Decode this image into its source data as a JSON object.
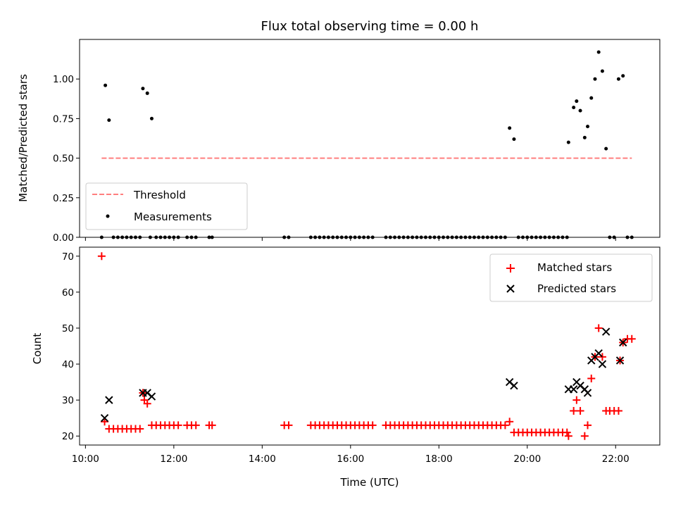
{
  "chart_data": [
    {
      "type": "scatter",
      "title": "Flux total observing time = 0.00 h",
      "xlabel": "",
      "ylabel": "Matched/Predicted stars",
      "xlim": [
        "09:52",
        "23:00"
      ],
      "ylim": [
        0,
        1.25
      ],
      "yticks": [
        0.0,
        0.25,
        0.5,
        0.75,
        1.0
      ],
      "ytick_labels": [
        "0.00",
        "0.25",
        "0.50",
        "0.75",
        "1.00"
      ],
      "legend": {
        "placement": "lower-left",
        "entries": [
          "Threshold",
          "Measurements"
        ]
      },
      "threshold": {
        "name": "Threshold",
        "value": 0.5,
        "x_range": [
          "10:22",
          "22:22"
        ],
        "color": "#ff7f7f",
        "style": "dashed"
      },
      "series": [
        {
          "name": "Measurements",
          "color": "#000000",
          "points": [
            [
              "10:22",
              0
            ],
            [
              "10:27",
              0.96
            ],
            [
              "10:32",
              0.74
            ],
            [
              "10:38",
              0
            ],
            [
              "10:44",
              0
            ],
            [
              "10:50",
              0
            ],
            [
              "10:56",
              0
            ],
            [
              "11:02",
              0
            ],
            [
              "11:08",
              0
            ],
            [
              "11:14",
              0
            ],
            [
              "11:18",
              0.94
            ],
            [
              "11:24",
              0.91
            ],
            [
              "11:28",
              0
            ],
            [
              "11:30",
              0.75
            ],
            [
              "11:36",
              0
            ],
            [
              "11:42",
              0
            ],
            [
              "11:48",
              0
            ],
            [
              "11:54",
              0
            ],
            [
              "12:00",
              0
            ],
            [
              "12:06",
              0
            ],
            [
              "12:18",
              0
            ],
            [
              "12:24",
              0
            ],
            [
              "12:30",
              0
            ],
            [
              "12:48",
              0
            ],
            [
              "12:52",
              0
            ],
            [
              "14:30",
              0
            ],
            [
              "14:36",
              0
            ],
            [
              "15:06",
              0
            ],
            [
              "15:12",
              0
            ],
            [
              "15:18",
              0
            ],
            [
              "15:24",
              0
            ],
            [
              "15:30",
              0
            ],
            [
              "15:36",
              0
            ],
            [
              "15:42",
              0
            ],
            [
              "15:48",
              0
            ],
            [
              "15:54",
              0
            ],
            [
              "16:00",
              0
            ],
            [
              "16:06",
              0
            ],
            [
              "16:12",
              0
            ],
            [
              "16:18",
              0
            ],
            [
              "16:24",
              0
            ],
            [
              "16:30",
              0
            ],
            [
              "16:48",
              0
            ],
            [
              "16:54",
              0
            ],
            [
              "17:00",
              0
            ],
            [
              "17:06",
              0
            ],
            [
              "17:12",
              0
            ],
            [
              "17:18",
              0
            ],
            [
              "17:24",
              0
            ],
            [
              "17:30",
              0
            ],
            [
              "17:36",
              0
            ],
            [
              "17:42",
              0
            ],
            [
              "17:48",
              0
            ],
            [
              "17:54",
              0
            ],
            [
              "18:00",
              0
            ],
            [
              "18:06",
              0
            ],
            [
              "18:12",
              0
            ],
            [
              "18:18",
              0
            ],
            [
              "18:24",
              0
            ],
            [
              "18:30",
              0
            ],
            [
              "18:36",
              0
            ],
            [
              "18:42",
              0
            ],
            [
              "18:48",
              0
            ],
            [
              "18:54",
              0
            ],
            [
              "19:00",
              0
            ],
            [
              "19:06",
              0
            ],
            [
              "19:12",
              0
            ],
            [
              "19:18",
              0
            ],
            [
              "19:24",
              0
            ],
            [
              "19:30",
              0
            ],
            [
              "19:36",
              0.69
            ],
            [
              "19:42",
              0.62
            ],
            [
              "19:48",
              0
            ],
            [
              "19:54",
              0
            ],
            [
              "20:00",
              0
            ],
            [
              "20:06",
              0
            ],
            [
              "20:12",
              0
            ],
            [
              "20:18",
              0
            ],
            [
              "20:24",
              0
            ],
            [
              "20:30",
              0
            ],
            [
              "20:36",
              0
            ],
            [
              "20:42",
              0
            ],
            [
              "20:48",
              0
            ],
            [
              "20:54",
              0
            ],
            [
              "20:56",
              0.6
            ],
            [
              "21:03",
              0.82
            ],
            [
              "21:07",
              0.86
            ],
            [
              "21:12",
              0.8
            ],
            [
              "21:18",
              0.63
            ],
            [
              "21:22",
              0.7
            ],
            [
              "21:27",
              0.88
            ],
            [
              "21:32",
              1.0
            ],
            [
              "21:37",
              1.17
            ],
            [
              "21:42",
              1.05
            ],
            [
              "21:47",
              0.56
            ],
            [
              "21:52",
              0
            ],
            [
              "21:58",
              0
            ],
            [
              "22:04",
              1.0
            ],
            [
              "22:10",
              1.02
            ],
            [
              "22:16",
              0
            ],
            [
              "22:22",
              0
            ]
          ]
        }
      ]
    },
    {
      "type": "scatter",
      "title": "",
      "xlabel": "Time (UTC)",
      "ylabel": "Count",
      "xlim": [
        "09:52",
        "23:00"
      ],
      "xticks": [
        "10:00",
        "12:00",
        "14:00",
        "16:00",
        "18:00",
        "20:00",
        "22:00"
      ],
      "ylim": [
        17.5,
        72.5
      ],
      "yticks": [
        20,
        30,
        40,
        50,
        60,
        70
      ],
      "legend": {
        "placement": "upper-right",
        "entries": [
          "Matched stars",
          "Predicted stars"
        ]
      },
      "series": [
        {
          "name": "Matched stars",
          "marker": "+",
          "color": "#ff0000",
          "points": [
            [
              "10:22",
              70
            ],
            [
              "10:26",
              24
            ],
            [
              "10:32",
              22
            ],
            [
              "10:38",
              22
            ],
            [
              "10:44",
              22
            ],
            [
              "10:50",
              22
            ],
            [
              "10:56",
              22
            ],
            [
              "11:02",
              22
            ],
            [
              "11:08",
              22
            ],
            [
              "11:14",
              22
            ],
            [
              "11:18",
              32
            ],
            [
              "11:20",
              30
            ],
            [
              "11:24",
              29
            ],
            [
              "11:30",
              23
            ],
            [
              "11:36",
              23
            ],
            [
              "11:42",
              23
            ],
            [
              "11:48",
              23
            ],
            [
              "11:54",
              23
            ],
            [
              "12:00",
              23
            ],
            [
              "12:06",
              23
            ],
            [
              "12:18",
              23
            ],
            [
              "12:24",
              23
            ],
            [
              "12:30",
              23
            ],
            [
              "12:48",
              23
            ],
            [
              "12:52",
              23
            ],
            [
              "14:30",
              23
            ],
            [
              "14:36",
              23
            ],
            [
              "15:06",
              23
            ],
            [
              "15:12",
              23
            ],
            [
              "15:18",
              23
            ],
            [
              "15:24",
              23
            ],
            [
              "15:30",
              23
            ],
            [
              "15:36",
              23
            ],
            [
              "15:42",
              23
            ],
            [
              "15:48",
              23
            ],
            [
              "15:54",
              23
            ],
            [
              "16:00",
              23
            ],
            [
              "16:06",
              23
            ],
            [
              "16:12",
              23
            ],
            [
              "16:18",
              23
            ],
            [
              "16:24",
              23
            ],
            [
              "16:30",
              23
            ],
            [
              "16:48",
              23
            ],
            [
              "16:54",
              23
            ],
            [
              "17:00",
              23
            ],
            [
              "17:06",
              23
            ],
            [
              "17:12",
              23
            ],
            [
              "17:18",
              23
            ],
            [
              "17:24",
              23
            ],
            [
              "17:30",
              23
            ],
            [
              "17:36",
              23
            ],
            [
              "17:42",
              23
            ],
            [
              "17:48",
              23
            ],
            [
              "17:54",
              23
            ],
            [
              "18:00",
              23
            ],
            [
              "18:06",
              23
            ],
            [
              "18:12",
              23
            ],
            [
              "18:18",
              23
            ],
            [
              "18:24",
              23
            ],
            [
              "18:30",
              23
            ],
            [
              "18:36",
              23
            ],
            [
              "18:42",
              23
            ],
            [
              "18:48",
              23
            ],
            [
              "18:54",
              23
            ],
            [
              "19:00",
              23
            ],
            [
              "19:06",
              23
            ],
            [
              "19:12",
              23
            ],
            [
              "19:18",
              23
            ],
            [
              "19:24",
              23
            ],
            [
              "19:30",
              23
            ],
            [
              "19:36",
              24
            ],
            [
              "19:42",
              21
            ],
            [
              "19:48",
              21
            ],
            [
              "19:54",
              21
            ],
            [
              "20:00",
              21
            ],
            [
              "20:06",
              21
            ],
            [
              "20:12",
              21
            ],
            [
              "20:18",
              21
            ],
            [
              "20:24",
              21
            ],
            [
              "20:30",
              21
            ],
            [
              "20:36",
              21
            ],
            [
              "20:42",
              21
            ],
            [
              "20:48",
              21
            ],
            [
              "20:54",
              21
            ],
            [
              "20:56",
              20
            ],
            [
              "21:03",
              27
            ],
            [
              "21:07",
              30
            ],
            [
              "21:12",
              27
            ],
            [
              "21:18",
              20
            ],
            [
              "21:22",
              23
            ],
            [
              "21:27",
              36
            ],
            [
              "21:32",
              42
            ],
            [
              "21:37",
              50
            ],
            [
              "21:42",
              42
            ],
            [
              "21:47",
              27
            ],
            [
              "21:52",
              27
            ],
            [
              "21:58",
              27
            ],
            [
              "22:04",
              27
            ],
            [
              "22:06",
              41
            ],
            [
              "22:10",
              46
            ],
            [
              "22:16",
              47
            ],
            [
              "22:22",
              47
            ]
          ]
        },
        {
          "name": "Predicted stars",
          "marker": "x",
          "color": "#000000",
          "points": [
            [
              "10:26",
              25
            ],
            [
              "10:32",
              30
            ],
            [
              "11:18",
              32
            ],
            [
              "11:24",
              32
            ],
            [
              "11:30",
              31
            ],
            [
              "19:36",
              35
            ],
            [
              "19:42",
              34
            ],
            [
              "20:56",
              33
            ],
            [
              "21:03",
              33
            ],
            [
              "21:07",
              35
            ],
            [
              "21:12",
              34
            ],
            [
              "21:18",
              33
            ],
            [
              "21:22",
              32
            ],
            [
              "21:27",
              41
            ],
            [
              "21:32",
              42
            ],
            [
              "21:37",
              43
            ],
            [
              "21:42",
              40
            ],
            [
              "21:47",
              49
            ],
            [
              "22:06",
              41
            ],
            [
              "22:10",
              46
            ]
          ]
        }
      ]
    }
  ]
}
